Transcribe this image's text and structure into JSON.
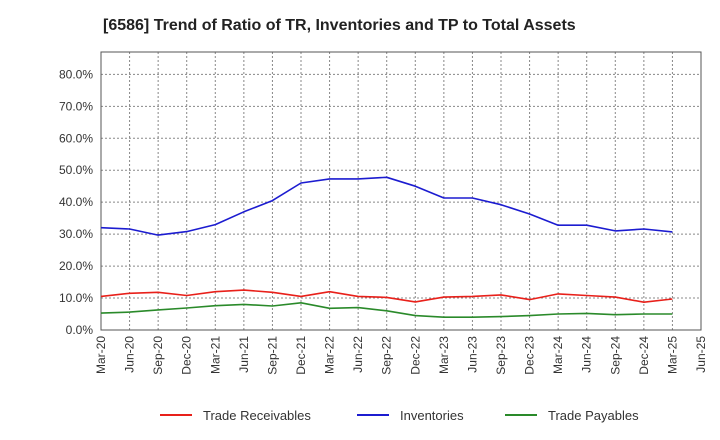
{
  "chart_data": {
    "type": "line",
    "title": "[6586]  Trend of Ratio of TR, Inventories and TP to Total Assets",
    "xlabel": "",
    "ylabel": "",
    "x_ticks": [
      "Mar-20",
      "Jun-20",
      "Sep-20",
      "Dec-20",
      "Mar-21",
      "Jun-21",
      "Sep-21",
      "Dec-21",
      "Mar-22",
      "Jun-22",
      "Sep-22",
      "Dec-22",
      "Mar-23",
      "Jun-23",
      "Sep-23",
      "Dec-23",
      "Mar-24",
      "Jun-24",
      "Sep-24",
      "Dec-24",
      "Mar-25",
      "Jun-25"
    ],
    "x": [
      "Mar-20",
      "Jun-20",
      "Sep-20",
      "Dec-20",
      "Mar-21",
      "Jun-21",
      "Sep-21",
      "Dec-21",
      "Mar-22",
      "Jun-22",
      "Sep-22",
      "Dec-22",
      "Mar-23",
      "Jun-23",
      "Sep-23",
      "Dec-23",
      "Mar-24",
      "Jun-24",
      "Sep-24",
      "Dec-24",
      "Mar-25"
    ],
    "y_ticks": [
      "0.0%",
      "10.0%",
      "20.0%",
      "30.0%",
      "40.0%",
      "50.0%",
      "60.0%",
      "70.0%",
      "80.0%"
    ],
    "ylim": [
      0,
      87
    ],
    "grid": true,
    "legend_position": "bottom",
    "series": [
      {
        "name": "Trade Receivables",
        "color": "#e8201a",
        "values": [
          10.5,
          11.5,
          11.8,
          10.8,
          12.0,
          12.5,
          11.8,
          10.5,
          12.0,
          10.5,
          10.2,
          8.8,
          10.3,
          10.5,
          11.0,
          9.5,
          11.3,
          10.8,
          10.3,
          8.7,
          9.7
        ]
      },
      {
        "name": "Inventories",
        "color": "#1c1cd0",
        "values": [
          32.0,
          31.6,
          29.7,
          30.8,
          33.0,
          37.0,
          40.5,
          46.0,
          47.3,
          47.3,
          47.8,
          45.0,
          41.3,
          41.3,
          39.2,
          36.3,
          32.8,
          32.8,
          31.0,
          31.6,
          30.7
        ]
      },
      {
        "name": "Trade Payables",
        "color": "#2a8a2a",
        "values": [
          5.3,
          5.6,
          6.3,
          6.9,
          7.6,
          8.0,
          7.5,
          8.5,
          6.8,
          7.0,
          6.0,
          4.5,
          4.0,
          4.0,
          4.2,
          4.5,
          5.0,
          5.2,
          4.8,
          5.0,
          5.0
        ]
      }
    ]
  }
}
